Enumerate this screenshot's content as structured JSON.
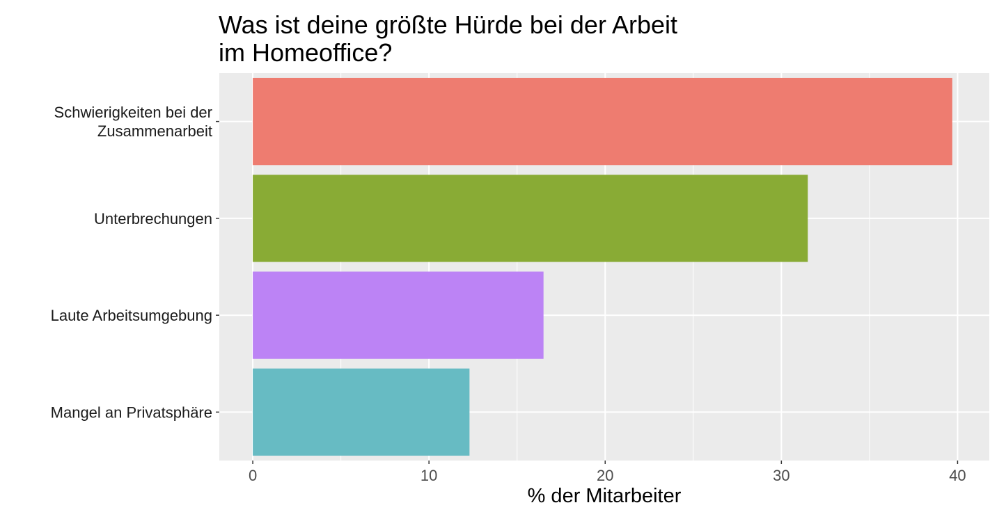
{
  "chart_data": {
    "type": "bar",
    "orientation": "horizontal",
    "title": [
      "Was ist deine größte Hürde bei der Arbeit",
      "im Homeoffice?"
    ],
    "xlabel": "% der Mitarbeiter",
    "ylabel": "",
    "categories": [
      [
        "Schwierigkeiten bei der",
        "Zusammenarbeit"
      ],
      [
        "Unterbrechungen"
      ],
      [
        "Laute Arbeitsumgebung"
      ],
      [
        "Mangel an Privatsphäre"
      ]
    ],
    "values": [
      39.7,
      31.5,
      16.5,
      12.3
    ],
    "colors": [
      "#EE7C70",
      "#89AB35",
      "#BC83F5",
      "#67BBC3"
    ],
    "xlim": [
      -1.9,
      41.8
    ],
    "x_ticks": [
      0,
      10,
      20,
      30,
      40
    ],
    "tick_labels": [
      "0",
      "10",
      "20",
      "30",
      "40"
    ],
    "grid": true,
    "panel_background": "#EBEBEB",
    "grid_color": "#FFFFFF"
  }
}
